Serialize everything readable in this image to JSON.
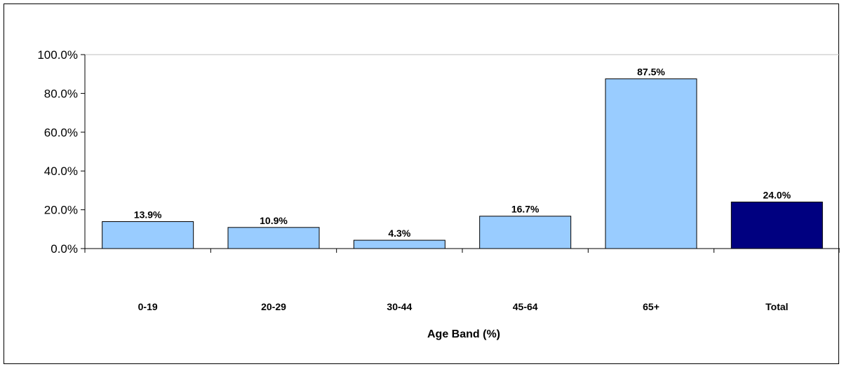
{
  "chart_data": {
    "type": "bar",
    "title": "",
    "xlabel": "Age  Band (%)",
    "ylabel": "",
    "categories": [
      "0-19",
      "20-29",
      "30-44",
      "45-64",
      "65+",
      "Total"
    ],
    "values": [
      13.9,
      10.9,
      4.3,
      16.7,
      87.5,
      24.0
    ],
    "data_labels": [
      "13.9%",
      "10.9%",
      "4.3%",
      "16.7%",
      "87.5%",
      "24.0%"
    ],
    "ylim": [
      0,
      100
    ],
    "yticks": [
      0,
      20,
      40,
      60,
      80,
      100
    ],
    "ytick_labels": [
      "0.0%",
      "20.0%",
      "40.0%",
      "60.0%",
      "80.0%",
      "100.0%"
    ],
    "grid": false,
    "legend": "none",
    "colors": {
      "bar": "#99ccff",
      "highlight_bar": "#000080",
      "bar_outline": "#000000",
      "axis": "#000000",
      "top_rule": "#bfbfbf"
    },
    "highlight_category": "Total"
  }
}
